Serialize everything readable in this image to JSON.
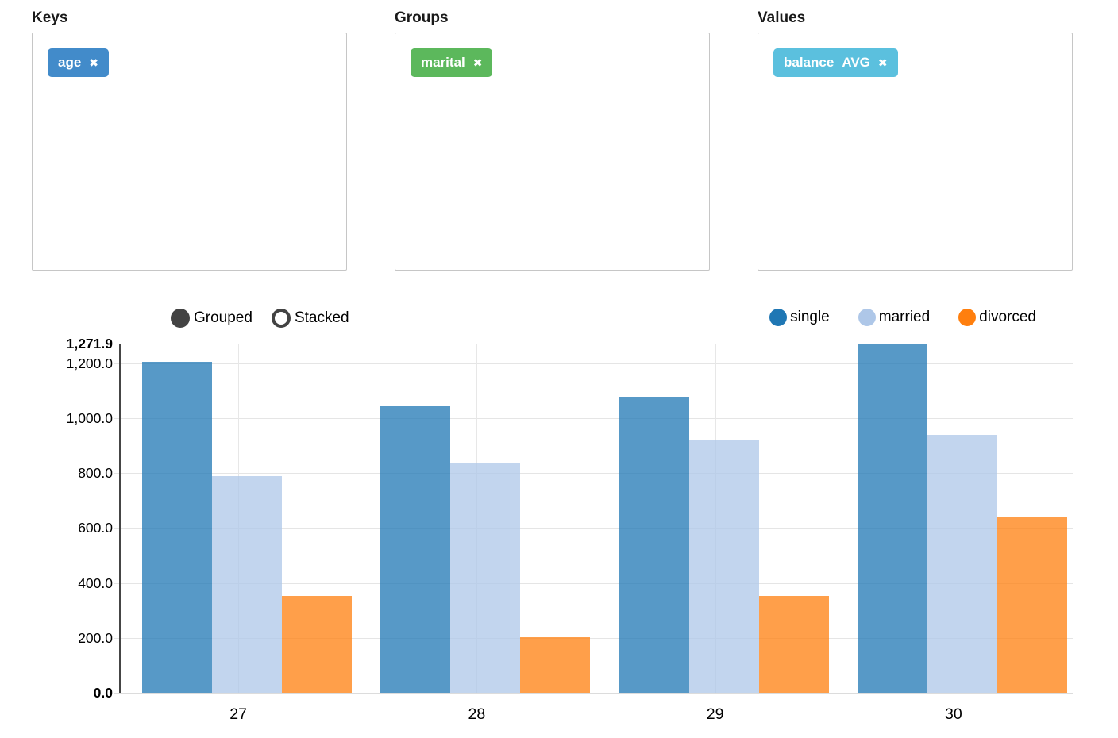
{
  "panels": {
    "keys": {
      "title": "Keys",
      "tags": [
        {
          "label": "age",
          "color": "#428bca"
        }
      ]
    },
    "groups": {
      "title": "Groups",
      "tags": [
        {
          "label": "marital",
          "color": "#5cb85c"
        }
      ]
    },
    "values": {
      "title": "Values",
      "tags": [
        {
          "label": "balance",
          "aggregate": "AVG",
          "color": "#5bc0de"
        }
      ]
    }
  },
  "icons": {
    "remove": "✖"
  },
  "chart_controls": {
    "options": [
      {
        "label": "Grouped",
        "selected": true
      },
      {
        "label": "Stacked",
        "selected": false
      }
    ]
  },
  "chart_data": {
    "type": "bar",
    "mode": "grouped",
    "categories": [
      "27",
      "28",
      "29",
      "30"
    ],
    "series": [
      {
        "name": "single",
        "color": "#1f77b4",
        "values": [
          1206,
          1045,
          1078,
          1271.9
        ]
      },
      {
        "name": "married",
        "color": "#aec7e8",
        "values": [
          789,
          835,
          923,
          940
        ]
      },
      {
        "name": "divorced",
        "color": "#ff7f0e",
        "values": [
          353,
          203,
          354,
          639
        ]
      }
    ],
    "bar_opacity": 0.75,
    "ylim": [
      0,
      1271.9
    ],
    "y_ticks": [
      {
        "value": 0,
        "label": "0.0",
        "bold": true
      },
      {
        "value": 200,
        "label": "200.0"
      },
      {
        "value": 400,
        "label": "400.0"
      },
      {
        "value": 600,
        "label": "600.0"
      },
      {
        "value": 800,
        "label": "800.0"
      },
      {
        "value": 1000,
        "label": "1,000.0"
      },
      {
        "value": 1200,
        "label": "1,200.0"
      },
      {
        "value": 1271.9,
        "label": "1,271.9",
        "bold": true
      }
    ],
    "grid": true,
    "legend_position": "top-right"
  }
}
